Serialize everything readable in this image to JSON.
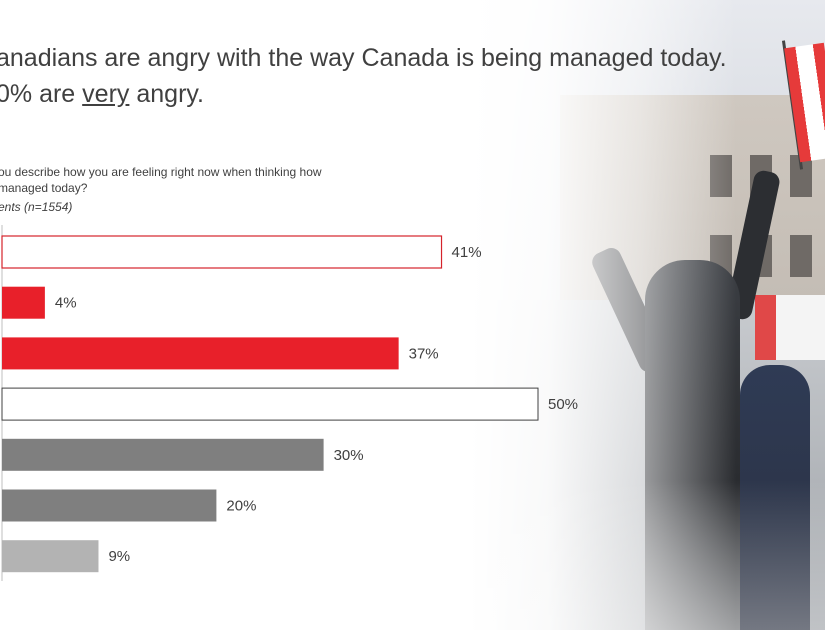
{
  "headline": {
    "line1": "anadians are angry with the way Canada is being managed today.",
    "line2_pre": "0% are ",
    "line2_underlined": "very",
    "line2_post": " angry."
  },
  "question": {
    "line1": "ou describe how you are feeling right now when thinking how",
    "line2": "managed today?"
  },
  "base_note": "ents (n=1554)",
  "chart_data": {
    "type": "bar",
    "orientation": "horizontal",
    "values": [
      41,
      4,
      37,
      50,
      30,
      20,
      9
    ],
    "labels": [
      "41%",
      "4%",
      "37%",
      "50%",
      "30%",
      "20%",
      "9%"
    ],
    "styles": [
      "red-outline",
      "red",
      "red",
      "black-outline",
      "dark-grey",
      "dark-grey",
      "light-grey"
    ],
    "xlim": [
      0,
      50
    ],
    "grid": false,
    "colors": {
      "red": "#e8202a",
      "dark_grey": "#7f7f7f",
      "light_grey": "#b3b3b3",
      "outline_red": "#d5232b",
      "outline_black": "#404040"
    }
  }
}
